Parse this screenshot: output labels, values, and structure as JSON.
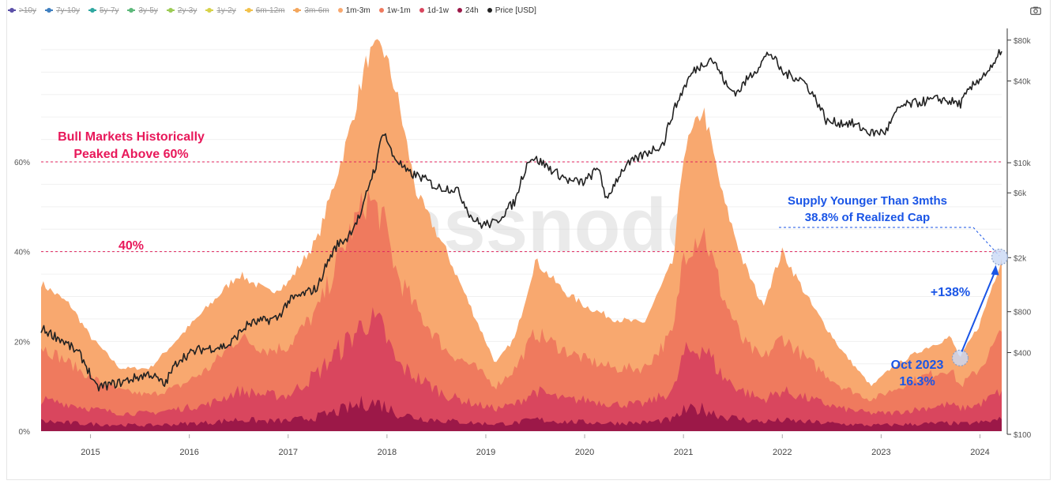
{
  "legend": [
    {
      "label": ">10y",
      "color": "#5b4fa8",
      "active": false
    },
    {
      "label": "7y-10y",
      "color": "#3f7fc0",
      "active": false
    },
    {
      "label": "5y-7y",
      "color": "#2fa7a0",
      "active": false
    },
    {
      "label": "3y-5y",
      "color": "#5cb87a",
      "active": false
    },
    {
      "label": "2y-3y",
      "color": "#9ccb55",
      "active": false
    },
    {
      "label": "1y-2y",
      "color": "#d7d24a",
      "active": false
    },
    {
      "label": "6m-12m",
      "color": "#f2c14a",
      "active": false
    },
    {
      "label": "3m-6m",
      "color": "#f3a65c",
      "active": false
    },
    {
      "label": "1m-3m",
      "color": "#f8a86f",
      "active": true
    },
    {
      "label": "1w-1m",
      "color": "#ef7a5e",
      "active": true
    },
    {
      "label": "1d-1w",
      "color": "#d9465e",
      "active": true
    },
    {
      "label": "24h",
      "color": "#9c1848",
      "active": true
    },
    {
      "label": "Price [USD]",
      "color": "#222222",
      "active": true
    }
  ],
  "toolbar": {
    "camera_icon": "camera-icon"
  },
  "watermark": "glassnode",
  "chart_data": {
    "type": "area",
    "x_ticks": [
      "2015",
      "2016",
      "2017",
      "2018",
      "2019",
      "2020",
      "2021",
      "2022",
      "2023",
      "2024"
    ],
    "x_range": [
      2014.5,
      2024.22
    ],
    "y_left": {
      "ticks": [
        "0%",
        "20%",
        "40%",
        "60%"
      ],
      "range": [
        0,
        86
      ]
    },
    "y_right": {
      "scale": "log",
      "ticks": [
        "$100",
        "$400",
        "$800",
        "$2k",
        "$6k",
        "$10k",
        "$40k",
        "$80k"
      ],
      "range": [
        100,
        90000
      ]
    },
    "x": [
      2014.5,
      2014.8,
      2015.0,
      2015.3,
      2015.6,
      2015.9,
      2016.2,
      2016.5,
      2016.8,
      2017.0,
      2017.3,
      2017.6,
      2017.8,
      2017.95,
      2018.1,
      2018.3,
      2018.6,
      2018.9,
      2019.1,
      2019.3,
      2019.5,
      2019.8,
      2020.0,
      2020.3,
      2020.6,
      2020.9,
      2021.0,
      2021.2,
      2021.4,
      2021.6,
      2021.8,
      2022.0,
      2022.3,
      2022.6,
      2022.9,
      2023.1,
      2023.4,
      2023.7,
      2023.8,
      2024.0,
      2024.22
    ],
    "series": [
      {
        "name": "1m-3m",
        "color": "#f8a86f",
        "values": [
          33,
          28,
          21,
          14,
          14,
          21,
          28,
          35,
          31,
          33,
          43,
          65,
          83,
          86,
          75,
          53,
          40,
          25,
          15,
          21,
          38,
          31,
          28,
          25,
          24,
          38,
          62,
          72,
          52,
          38,
          28,
          40,
          28,
          18,
          10,
          14,
          18,
          21,
          16.3,
          24,
          38.8
        ]
      },
      {
        "name": "1w-1m",
        "color": "#ef7a5e",
        "values": [
          19,
          15,
          12,
          9,
          8,
          10,
          14,
          21,
          18,
          19,
          27,
          43,
          52,
          48,
          35,
          27,
          18,
          14,
          10,
          14,
          22,
          18,
          16,
          14,
          14,
          22,
          40,
          45,
          30,
          20,
          16,
          21,
          15,
          10,
          7,
          9,
          12,
          14,
          10,
          14,
          22
        ]
      },
      {
        "name": "1d-1w",
        "color": "#d9465e",
        "values": [
          7,
          6,
          5,
          4,
          4,
          5,
          6,
          9,
          8,
          8,
          13,
          20,
          25,
          23,
          15,
          12,
          8,
          6,
          5,
          6,
          9,
          7,
          7,
          6,
          6,
          9,
          17,
          19,
          12,
          9,
          7,
          9,
          7,
          5,
          4,
          4,
          5,
          6,
          5,
          6,
          9
        ]
      },
      {
        "name": "24h",
        "color": "#9c1848",
        "values": [
          2.2,
          1.8,
          1.6,
          1.4,
          1.3,
          1.6,
          1.9,
          2.6,
          2.2,
          2.3,
          3.2,
          5.0,
          6.5,
          6.0,
          4.0,
          3.0,
          2.3,
          1.8,
          1.6,
          1.8,
          2.6,
          2.1,
          2.0,
          1.8,
          1.9,
          2.6,
          4.5,
          5.0,
          3.3,
          2.6,
          2.1,
          2.4,
          2.0,
          1.6,
          1.3,
          1.4,
          1.6,
          1.8,
          1.6,
          1.9,
          2.6
        ]
      },
      {
        "name": "Price [USD]",
        "color": "#222222",
        "axis": "right",
        "x": [
          2014.5,
          2014.7,
          2014.9,
          2015.05,
          2015.3,
          2015.6,
          2015.75,
          2015.9,
          2016.1,
          2016.4,
          2016.6,
          2016.9,
          2017.0,
          2017.3,
          2017.5,
          2017.6,
          2017.75,
          2017.9,
          2017.96,
          2018.05,
          2018.2,
          2018.35,
          2018.5,
          2018.7,
          2018.85,
          2018.95,
          2019.1,
          2019.3,
          2019.45,
          2019.55,
          2019.7,
          2019.85,
          2020.0,
          2020.15,
          2020.21,
          2020.4,
          2020.6,
          2020.8,
          2020.95,
          2021.1,
          2021.28,
          2021.45,
          2021.55,
          2021.75,
          2021.87,
          2022.0,
          2022.2,
          2022.45,
          2022.7,
          2022.9,
          2023.05,
          2023.2,
          2023.4,
          2023.6,
          2023.8,
          2024.0,
          2024.15,
          2024.22
        ],
        "values": [
          600,
          500,
          380,
          220,
          240,
          280,
          230,
          360,
          420,
          450,
          650,
          720,
          950,
          1200,
          2500,
          2800,
          4300,
          10000,
          17500,
          11500,
          8500,
          7800,
          6600,
          6400,
          4000,
          3500,
          3600,
          5200,
          11000,
          10200,
          8500,
          7300,
          7200,
          9200,
          5000,
          9200,
          11500,
          13800,
          29000,
          47000,
          59000,
          35000,
          33000,
          50000,
          65000,
          46000,
          41000,
          20000,
          19500,
          16500,
          17000,
          26000,
          28000,
          29500,
          27000,
          42000,
          52000,
          70000
        ]
      }
    ],
    "reference_lines": [
      60,
      40
    ],
    "annotations": {
      "bull": [
        "Bull Markets Historically",
        "Peaked Above 60%"
      ],
      "forty": "40%",
      "supply": [
        "Supply Younger Than 3mths",
        "38.8% of Realized Cap"
      ],
      "change": "+138%",
      "oct": [
        "Oct 2023",
        "16.3%"
      ]
    },
    "grid": true,
    "legend_position": "top-left"
  }
}
